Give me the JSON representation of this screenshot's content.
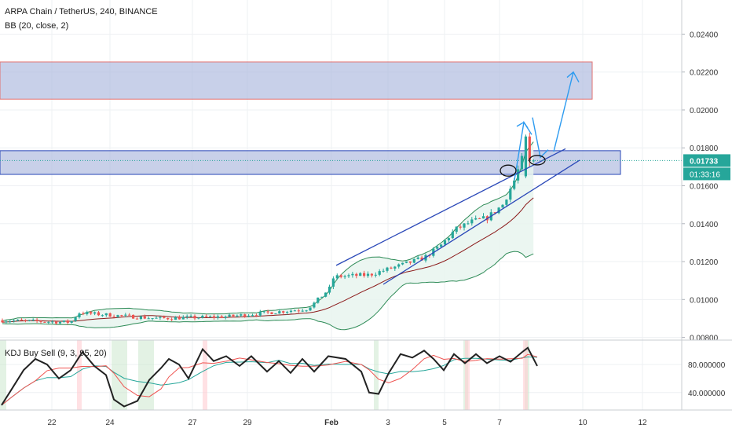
{
  "header": {
    "symbol_line": "ARPA Chain / TetherUS, 240, BINANCE",
    "bb_label": "BB (20, close, 2)",
    "kdj_label": "KDJ Buy Sell (9, 3, 95, 20)"
  },
  "price_panel": {
    "ylim": [
      0.0079,
      0.0258
    ],
    "ticks": [
      "0.00800",
      "0.01000",
      "0.01200",
      "0.01400",
      "0.01600",
      "0.01800",
      "0.02000",
      "0.02200",
      "0.02400"
    ],
    "last_price_badge": "0.01733",
    "countdown_badge": "01:33:16",
    "last_price": 0.01733
  },
  "kdj_panel": {
    "ylim": [
      15,
      115
    ],
    "ticks": [
      "40.000000",
      "80.000000"
    ]
  },
  "x_axis": {
    "range": [
      0,
      932
    ],
    "labels": [
      {
        "text": "22",
        "pos": 66,
        "bold": false
      },
      {
        "text": "24",
        "pos": 140,
        "bold": false
      },
      {
        "text": "27",
        "pos": 245,
        "bold": false
      },
      {
        "text": "29",
        "pos": 315,
        "bold": false
      },
      {
        "text": "Feb",
        "pos": 422,
        "bold": true
      },
      {
        "text": "3",
        "pos": 494,
        "bold": false
      },
      {
        "text": "5",
        "pos": 566,
        "bold": false
      },
      {
        "text": "7",
        "pos": 636,
        "bold": false
      },
      {
        "text": "10",
        "pos": 742,
        "bold": false
      },
      {
        "text": "12",
        "pos": 818,
        "bold": false
      }
    ]
  },
  "colors": {
    "up": "#26a69a",
    "down": "#ef5350",
    "zone_fill": "#aab7dd",
    "zone_border_top": "#e07070",
    "zone_border_mid": "#2a48b8",
    "trendline": "#2a48b8",
    "arrow": "#2d9bf0",
    "bb_basis": "#8b1a1a",
    "bb_band": "#2e8b57",
    "bb_fill": "#e8f5ef",
    "k_line": "#222222",
    "d_line": "#ef5350",
    "j_line": "#26a69a",
    "badge_price": "#26a69a",
    "badge_timer": "#26a69a"
  }
}
